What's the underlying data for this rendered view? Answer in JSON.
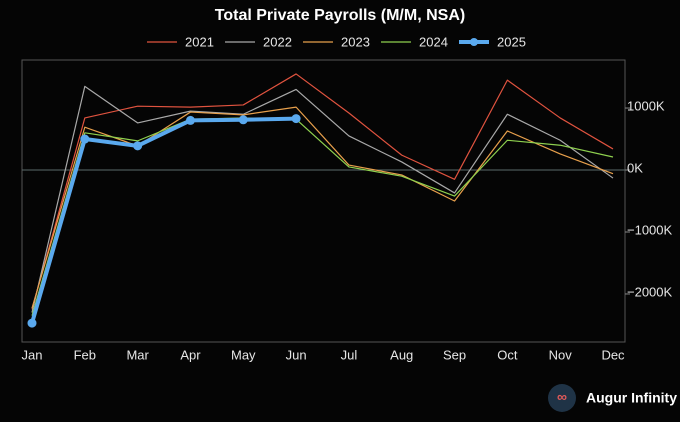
{
  "chart_data": {
    "type": "line",
    "title": "Total Private Payrolls (M/M, NSA)",
    "watermark": "Augur Infinity",
    "categories": [
      "Jan",
      "Feb",
      "Mar",
      "Apr",
      "May",
      "Jun",
      "Jul",
      "Aug",
      "Sep",
      "Oct",
      "Nov",
      "Dec"
    ],
    "series": [
      {
        "name": "2021",
        "color": "#e0533f",
        "values": [
          -2250,
          840,
          1030,
          1015,
          1050,
          1550,
          920,
          240,
          -150,
          1450,
          840,
          340
        ]
      },
      {
        "name": "2022",
        "color": "#a9a9a9",
        "values": [
          -2300,
          1350,
          760,
          950,
          900,
          1300,
          550,
          130,
          -370,
          900,
          480,
          -130
        ]
      },
      {
        "name": "2023",
        "color": "#e8a04c",
        "values": [
          -2230,
          690,
          390,
          935,
          890,
          1015,
          80,
          -80,
          -500,
          630,
          260,
          -60
        ]
      },
      {
        "name": "2024",
        "color": "#8fd14f",
        "values": [
          -2350,
          600,
          470,
          820,
          840,
          820,
          50,
          -100,
          -420,
          480,
          400,
          210
        ]
      },
      {
        "name": "2025",
        "color": "#5aa9ee",
        "values": [
          -2470,
          500,
          390,
          800,
          810,
          830,
          null,
          null,
          null,
          null,
          null,
          null
        ]
      }
    ],
    "ylim": [
      -2775,
      1775
    ],
    "yticks": [
      {
        "value": 1000,
        "label": "1000K"
      },
      {
        "value": 0,
        "label": "0K"
      },
      {
        "value": -1000,
        "label": "−1000K"
      },
      {
        "value": -2000,
        "label": "−2000K"
      }
    ],
    "grid": false
  }
}
